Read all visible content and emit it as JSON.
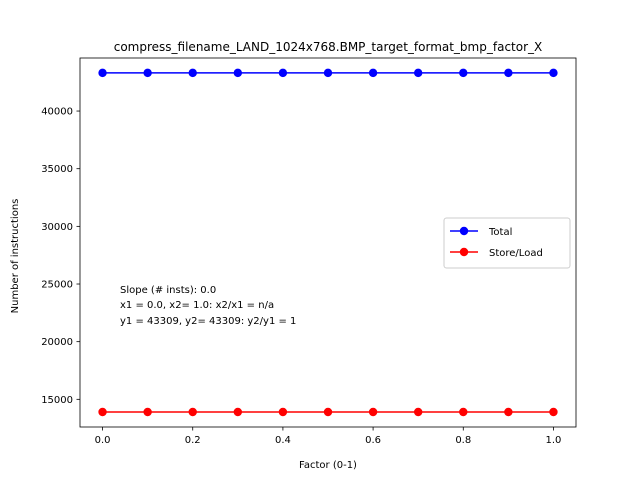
{
  "chart_data": {
    "type": "line",
    "title": "compress_filename_LAND_1024x768.BMP_target_format_bmp_factor_X",
    "xlabel": "Factor (0-1)",
    "ylabel": "Number of instructions",
    "xlim": [
      -0.05,
      1.05
    ],
    "ylim": [
      12600,
      44600
    ],
    "xticks": [
      0.0,
      0.2,
      0.4,
      0.6,
      0.8,
      1.0
    ],
    "xtick_labels": [
      "0.0",
      "0.2",
      "0.4",
      "0.6",
      "0.8",
      "1.0"
    ],
    "yticks": [
      15000,
      20000,
      25000,
      30000,
      35000,
      40000
    ],
    "ytick_labels": [
      "15000",
      "20000",
      "25000",
      "30000",
      "35000",
      "40000"
    ],
    "x": [
      0.0,
      0.1,
      0.2,
      0.3,
      0.4,
      0.5,
      0.6,
      0.7,
      0.8,
      0.9,
      1.0
    ],
    "series": [
      {
        "name": "Total",
        "color": "#0000ff",
        "values": [
          43309,
          43309,
          43309,
          43309,
          43309,
          43309,
          43309,
          43309,
          43309,
          43309,
          43309
        ]
      },
      {
        "name": "Store/Load",
        "color": "#ff0000",
        "values": [
          13900,
          13900,
          13900,
          13900,
          13900,
          13900,
          13900,
          13900,
          13900,
          13900,
          13900
        ]
      }
    ],
    "legend_position": "center-right",
    "grid": false,
    "annotation_lines": [
      "Slope (# insts): 0.0",
      "x1 = 0.0, x2= 1.0: x2/x1 = n/a",
      "y1 = 43309, y2= 43309: y2/y1 = 1"
    ]
  }
}
